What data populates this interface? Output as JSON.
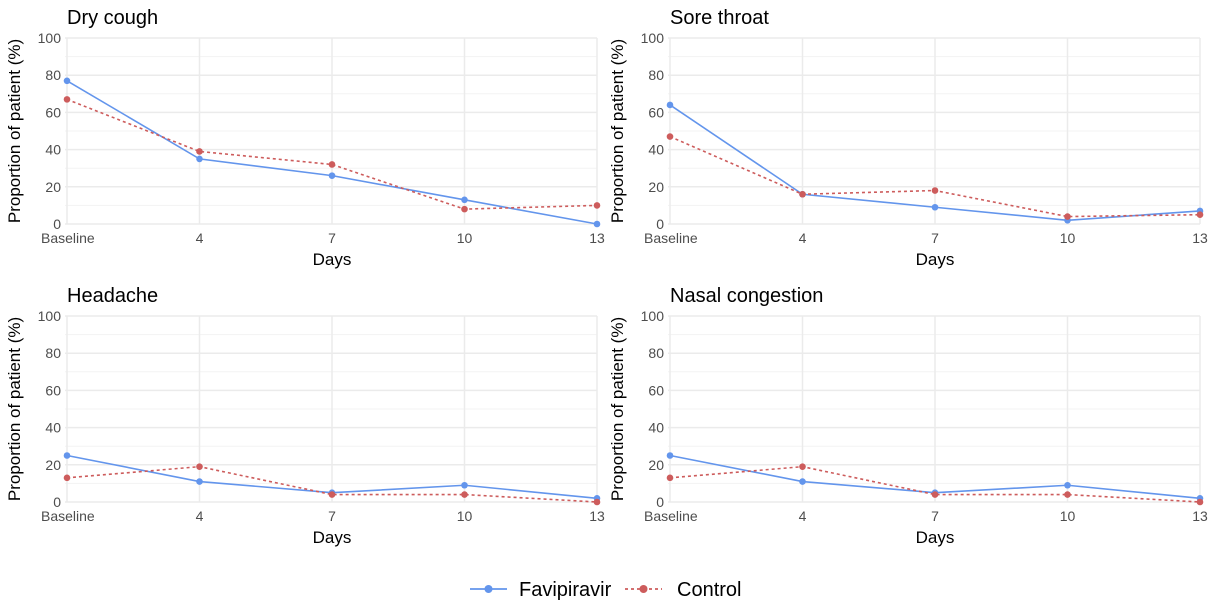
{
  "chart_data": {
    "type": "line",
    "x_axis": {
      "label": "Days",
      "categories": [
        "Baseline",
        "4",
        "7",
        "10",
        "13"
      ],
      "values": [
        1,
        4,
        7,
        10,
        13
      ],
      "range": [
        1,
        13
      ]
    },
    "y_axis": {
      "label": "Proportion of patient (%)",
      "ticks": [
        "0",
        "20",
        "40",
        "60",
        "80",
        "100"
      ],
      "range": [
        0,
        100
      ]
    },
    "grid": true,
    "legend": {
      "placement": "bottom",
      "entries": [
        "Favipiravir",
        "Control"
      ]
    },
    "series_styles": [
      {
        "name": "Favipiravir",
        "color": "#6395ec",
        "line": "solid"
      },
      {
        "name": "Control",
        "color": "#cd5c5c",
        "line": "dotted"
      }
    ],
    "panels": [
      {
        "title": "Dry cough",
        "series": [
          {
            "name": "Favipiravir",
            "values": [
              77,
              35,
              26,
              13,
              0
            ]
          },
          {
            "name": "Control",
            "values": [
              67,
              39,
              32,
              8,
              10
            ]
          }
        ]
      },
      {
        "title": "Sore throat",
        "series": [
          {
            "name": "Favipiravir",
            "values": [
              64,
              16,
              9,
              2,
              7
            ]
          },
          {
            "name": "Control",
            "values": [
              47,
              16,
              18,
              4,
              5
            ]
          }
        ]
      },
      {
        "title": "Headache",
        "series": [
          {
            "name": "Favipiravir",
            "values": [
              25,
              11,
              5,
              9,
              2
            ]
          },
          {
            "name": "Control",
            "values": [
              13,
              19,
              4,
              4,
              0
            ]
          }
        ]
      },
      {
        "title": "Nasal congestion",
        "series": [
          {
            "name": "Favipiravir",
            "values": [
              25,
              11,
              5,
              9,
              2
            ]
          },
          {
            "name": "Control",
            "values": [
              13,
              19,
              4,
              4,
              0
            ]
          }
        ]
      }
    ]
  }
}
